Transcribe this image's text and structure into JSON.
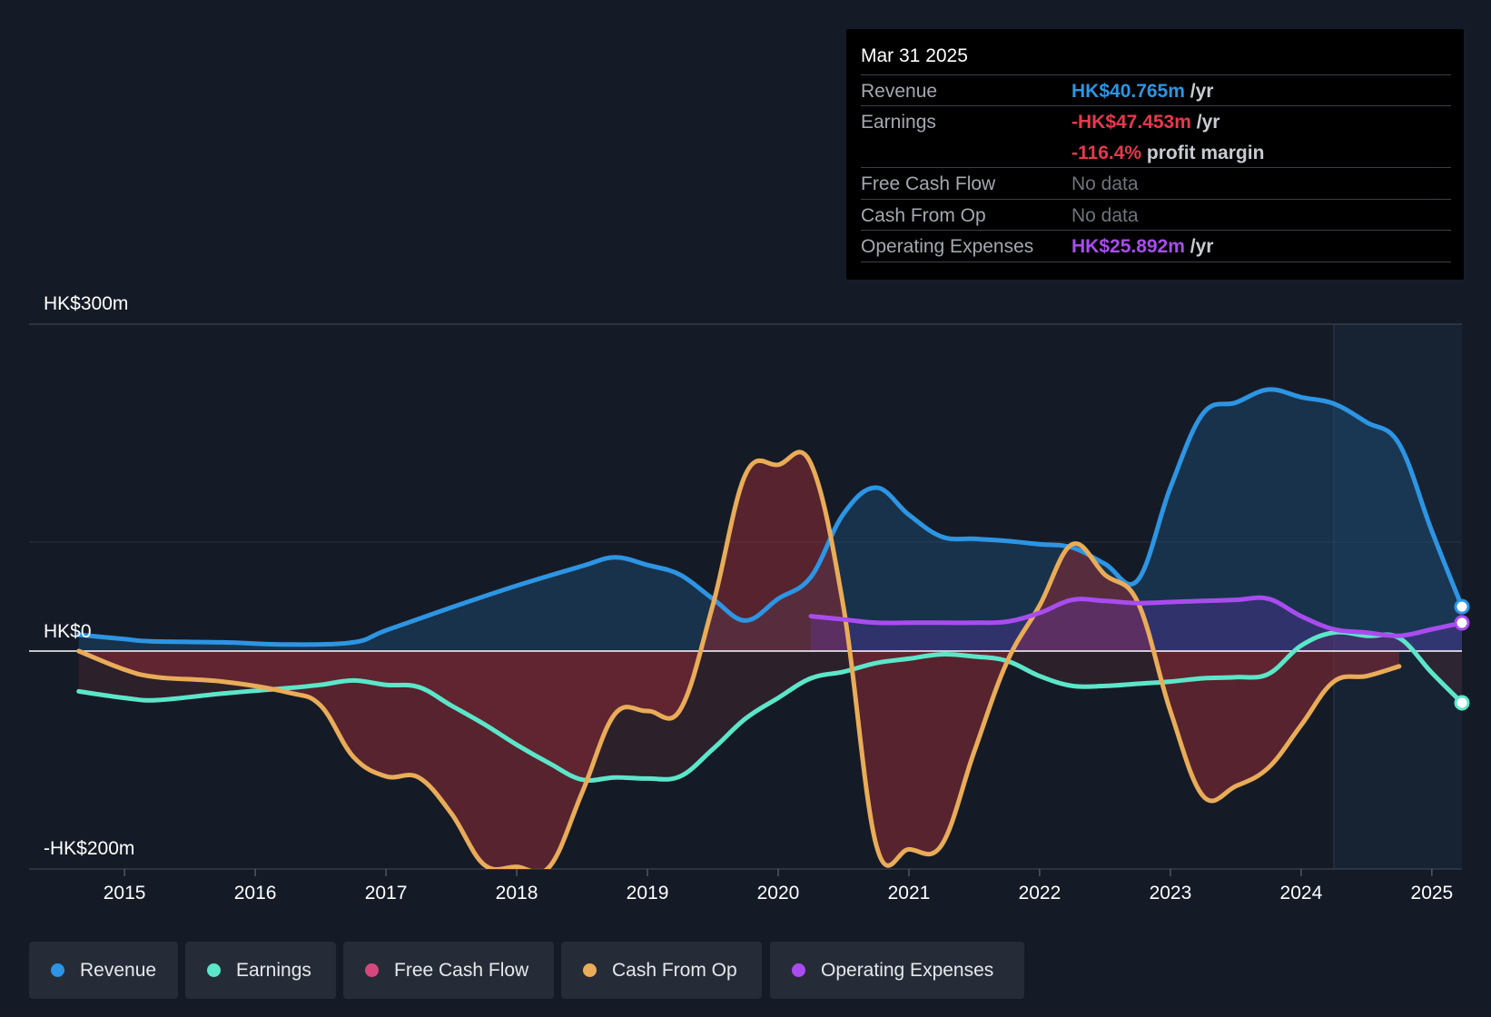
{
  "chart_data": {
    "type": "area",
    "y_axis": {
      "top_label": "HK$300m",
      "zero_label": "HK$0",
      "bottom_label": "-HK$200m",
      "ylim": [
        -200,
        300
      ]
    },
    "x_ticks": [
      "2015",
      "2016",
      "2017",
      "2018",
      "2019",
      "2020",
      "2021",
      "2022",
      "2023",
      "2024",
      "2025"
    ],
    "xlim": [
      2014.27,
      2025.23
    ],
    "forecast_start": 2024.25,
    "series": [
      {
        "name": "Revenue",
        "color": "#2d95e3",
        "values": [
          [
            2014.65,
            15
          ],
          [
            2015.0,
            11
          ],
          [
            2015.2,
            9
          ],
          [
            2015.75,
            8
          ],
          [
            2016.25,
            6
          ],
          [
            2016.75,
            8
          ],
          [
            2017.0,
            19
          ],
          [
            2017.5,
            40
          ],
          [
            2018.0,
            60
          ],
          [
            2018.5,
            78
          ],
          [
            2018.75,
            86
          ],
          [
            2019.0,
            79
          ],
          [
            2019.25,
            70
          ],
          [
            2019.5,
            48
          ],
          [
            2019.75,
            28
          ],
          [
            2020.0,
            48
          ],
          [
            2020.25,
            68
          ],
          [
            2020.5,
            126
          ],
          [
            2020.75,
            150
          ],
          [
            2021.0,
            125
          ],
          [
            2021.25,
            105
          ],
          [
            2021.5,
            103
          ],
          [
            2021.75,
            101
          ],
          [
            2022.0,
            98
          ],
          [
            2022.25,
            95
          ],
          [
            2022.5,
            80
          ],
          [
            2022.75,
            65
          ],
          [
            2023.0,
            150
          ],
          [
            2023.25,
            218
          ],
          [
            2023.5,
            228
          ],
          [
            2023.75,
            240
          ],
          [
            2024.0,
            233
          ],
          [
            2024.25,
            227
          ],
          [
            2024.5,
            210
          ],
          [
            2024.75,
            190
          ],
          [
            2025.0,
            110
          ],
          [
            2025.23,
            40.765
          ]
        ]
      },
      {
        "name": "Earnings",
        "color": "#5ce6c9",
        "values": [
          [
            2014.65,
            -37
          ],
          [
            2015.0,
            -43
          ],
          [
            2015.25,
            -45
          ],
          [
            2015.75,
            -39
          ],
          [
            2016.25,
            -34
          ],
          [
            2016.5,
            -31
          ],
          [
            2016.75,
            -27
          ],
          [
            2017.0,
            -31
          ],
          [
            2017.25,
            -33
          ],
          [
            2017.5,
            -50
          ],
          [
            2017.75,
            -67
          ],
          [
            2018.0,
            -86
          ],
          [
            2018.25,
            -103
          ],
          [
            2018.5,
            -118
          ],
          [
            2018.75,
            -116
          ],
          [
            2019.0,
            -117
          ],
          [
            2019.25,
            -115
          ],
          [
            2019.5,
            -90
          ],
          [
            2019.75,
            -62
          ],
          [
            2020.0,
            -43
          ],
          [
            2020.25,
            -25
          ],
          [
            2020.5,
            -19
          ],
          [
            2020.75,
            -11
          ],
          [
            2021.0,
            -7
          ],
          [
            2021.25,
            -3
          ],
          [
            2021.5,
            -5
          ],
          [
            2021.75,
            -9
          ],
          [
            2022.0,
            -23
          ],
          [
            2022.25,
            -32
          ],
          [
            2022.5,
            -32
          ],
          [
            2022.75,
            -30
          ],
          [
            2023.0,
            -28
          ],
          [
            2023.25,
            -25
          ],
          [
            2023.5,
            -24
          ],
          [
            2023.75,
            -21
          ],
          [
            2024.0,
            5
          ],
          [
            2024.25,
            17
          ],
          [
            2024.5,
            14
          ],
          [
            2024.75,
            12
          ],
          [
            2025.0,
            -20
          ],
          [
            2025.23,
            -47.453
          ]
        ]
      },
      {
        "name": "Free Cash Flow",
        "color": "#d6487d",
        "values": []
      },
      {
        "name": "Cash From Op",
        "color": "#e9ac58",
        "values": [
          [
            2014.65,
            0
          ],
          [
            2015.0,
            -17
          ],
          [
            2015.25,
            -24
          ],
          [
            2015.75,
            -28
          ],
          [
            2016.25,
            -38
          ],
          [
            2016.5,
            -50
          ],
          [
            2016.75,
            -97
          ],
          [
            2017.0,
            -115
          ],
          [
            2017.25,
            -116
          ],
          [
            2017.5,
            -149
          ],
          [
            2017.75,
            -196
          ],
          [
            2018.0,
            -198
          ],
          [
            2018.25,
            -198
          ],
          [
            2018.5,
            -130
          ],
          [
            2018.75,
            -58
          ],
          [
            2019.0,
            -55
          ],
          [
            2019.25,
            -54
          ],
          [
            2019.5,
            42
          ],
          [
            2019.75,
            162
          ],
          [
            2020.0,
            171
          ],
          [
            2020.25,
            172
          ],
          [
            2020.5,
            40
          ],
          [
            2020.75,
            -178
          ],
          [
            2021.0,
            -182
          ],
          [
            2021.25,
            -178
          ],
          [
            2021.5,
            -92
          ],
          [
            2021.75,
            -10
          ],
          [
            2022.0,
            42
          ],
          [
            2022.25,
            98
          ],
          [
            2022.5,
            70
          ],
          [
            2022.75,
            45
          ],
          [
            2023.0,
            -55
          ],
          [
            2023.25,
            -133
          ],
          [
            2023.5,
            -124
          ],
          [
            2023.75,
            -107
          ],
          [
            2024.0,
            -68
          ],
          [
            2024.25,
            -28
          ],
          [
            2024.5,
            -23
          ],
          [
            2024.75,
            -14
          ]
        ]
      },
      {
        "name": "Operating Expenses",
        "color": "#a94cef",
        "values": [
          [
            2020.25,
            32
          ],
          [
            2020.5,
            29
          ],
          [
            2020.75,
            26
          ],
          [
            2021.0,
            26
          ],
          [
            2021.25,
            26
          ],
          [
            2021.5,
            26
          ],
          [
            2021.75,
            27
          ],
          [
            2022.0,
            35
          ],
          [
            2022.25,
            47
          ],
          [
            2022.5,
            46
          ],
          [
            2022.75,
            44
          ],
          [
            2023.0,
            45
          ],
          [
            2023.25,
            46
          ],
          [
            2023.5,
            47
          ],
          [
            2023.75,
            48
          ],
          [
            2024.0,
            32
          ],
          [
            2024.25,
            20
          ],
          [
            2024.5,
            17
          ],
          [
            2024.75,
            14
          ],
          [
            2025.0,
            20
          ],
          [
            2025.23,
            25.892
          ]
        ]
      }
    ]
  },
  "tooltip": {
    "date": "Mar 31 2025",
    "rows": [
      {
        "label": "Revenue",
        "value": "HK$40.765m",
        "unit": "/yr",
        "color": "#2d95e3"
      },
      {
        "label": "Earnings",
        "value": "-HK$47.453m",
        "unit": "/yr",
        "color": "#e6394d"
      },
      {
        "sub_value": "-116.4%",
        "sub_text": "profit margin",
        "color": "#e6394d"
      },
      {
        "label": "Free Cash Flow",
        "value": "No data"
      },
      {
        "label": "Cash From Op",
        "value": "No data"
      },
      {
        "label": "Operating Expenses",
        "value": "HK$25.892m",
        "unit": "/yr",
        "color": "#a94cef"
      }
    ]
  },
  "legend": [
    {
      "label": "Revenue",
      "color": "#2d95e3"
    },
    {
      "label": "Earnings",
      "color": "#5ce6c9"
    },
    {
      "label": "Free Cash Flow",
      "color": "#d6487d"
    },
    {
      "label": "Cash From Op",
      "color": "#e9ac58"
    },
    {
      "label": "Operating Expenses",
      "color": "#a94cef"
    }
  ]
}
